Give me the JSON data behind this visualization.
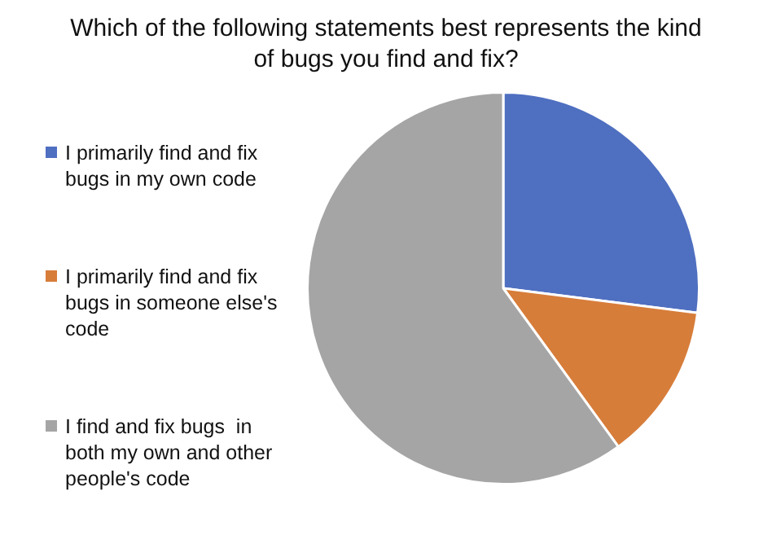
{
  "chart_data": {
    "type": "pie",
    "title": "Which of the following statements best represents the kind of bugs you find and fix?",
    "categories": [
      "I primarily find and fix bugs in my own code",
      "I primarily find and fix bugs in someone else's code",
      "I find and fix bugs  in both my own and other people's code"
    ],
    "values": [
      27,
      13,
      60
    ],
    "colors": [
      "#4f6fc0",
      "#d77d3a",
      "#a5a5a5"
    ],
    "legend": "left"
  }
}
